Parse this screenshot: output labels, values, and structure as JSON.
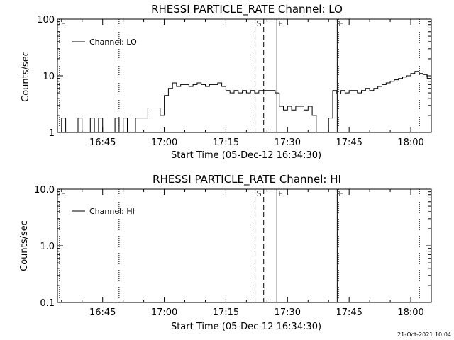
{
  "footer_timestamp": "21-Oct-2021 10:04",
  "chart_data": [
    {
      "type": "line",
      "title": "RHESSI PARTICLE_RATE Channel: LO",
      "xlabel": "Start Time (05-Dec-12 16:34:30)",
      "ylabel": "Counts/sec",
      "yscale": "log",
      "ylim": [
        1,
        100
      ],
      "xlim_minutes": [
        -0.5,
        90.5
      ],
      "x_ticks": [
        {
          "min": 10.5,
          "label": "16:45"
        },
        {
          "min": 25.5,
          "label": "17:00"
        },
        {
          "min": 40.5,
          "label": "17:15"
        },
        {
          "min": 55.5,
          "label": "17:30"
        },
        {
          "min": 70.5,
          "label": "17:45"
        },
        {
          "min": 85.5,
          "label": "18:00"
        }
      ],
      "y_ticks": [
        {
          "value": 1,
          "label": "1"
        },
        {
          "value": 10,
          "label": "10"
        },
        {
          "value": 100,
          "label": "100"
        }
      ],
      "legend": {
        "label": "Channel: LO",
        "position": "top-left"
      },
      "markers": [
        {
          "label": "E",
          "min": 0.0,
          "style": "dotted"
        },
        {
          "label": "",
          "min": 14.5,
          "style": "dotted"
        },
        {
          "label": "S",
          "min": 47.6,
          "style": "dashed"
        },
        {
          "label": "",
          "min": 49.7,
          "style": "dashed"
        },
        {
          "label": "F",
          "min": 52.9,
          "style": "solid"
        },
        {
          "label": "E",
          "min": 67.6,
          "style": "solid"
        },
        {
          "label": "",
          "min": 67.9,
          "style": "dotted"
        },
        {
          "label": "",
          "min": 87.6,
          "style": "dotted"
        }
      ],
      "series": [
        {
          "name": "Channel: LO",
          "x": [
            0,
            1,
            2,
            3,
            4,
            5,
            6,
            7,
            8,
            9,
            10,
            11,
            12,
            13,
            14,
            15,
            16,
            17,
            18,
            19,
            20,
            21,
            22,
            23,
            24,
            25,
            26,
            27,
            28,
            29,
            30,
            31,
            32,
            33,
            34,
            35,
            36,
            37,
            38,
            39,
            40,
            41,
            42,
            43,
            44,
            45,
            46,
            47,
            48,
            49,
            50,
            51,
            52,
            53,
            54,
            55,
            56,
            57,
            58,
            59,
            60,
            61,
            62,
            63,
            64,
            65,
            66,
            67,
            68,
            69,
            70,
            71,
            72,
            73,
            74,
            75,
            76,
            77,
            78,
            79,
            80,
            81,
            82,
            83,
            84,
            85,
            86,
            87,
            88,
            89,
            90
          ],
          "y": [
            1,
            1.8,
            1,
            1,
            1,
            1.8,
            1,
            1,
            1.8,
            1,
            1.8,
            1,
            1,
            1,
            1.8,
            1,
            1.8,
            1,
            1,
            1.8,
            1.8,
            1.8,
            2.7,
            2.7,
            2.7,
            2.0,
            4.5,
            6.0,
            7.5,
            6.5,
            7.0,
            7.0,
            6.5,
            7.0,
            7.5,
            7.0,
            6.5,
            7.0,
            7.0,
            7.5,
            6.5,
            5.5,
            5.0,
            5.5,
            5.0,
            5.5,
            5.0,
            5.5,
            5.0,
            5.5,
            5.5,
            5.5,
            5.5,
            5.0,
            2.9,
            2.5,
            2.9,
            2.5,
            2.9,
            2.9,
            2.5,
            2.9,
            2.0,
            1,
            1,
            1,
            1.8,
            5.5,
            4.8,
            5.5,
            5.0,
            5.5,
            5.5,
            5.0,
            5.5,
            6.0,
            5.5,
            6.0,
            6.5,
            7.0,
            7.5,
            8.0,
            8.5,
            9.0,
            9.5,
            10.0,
            11.0,
            12.0,
            11.0,
            10.5,
            9.0
          ]
        }
      ]
    },
    {
      "type": "line",
      "title": "RHESSI PARTICLE_RATE Channel: HI",
      "xlabel": "Start Time (05-Dec-12 16:34:30)",
      "ylabel": "Counts/sec",
      "yscale": "log",
      "ylim": [
        0.1,
        10.0
      ],
      "xlim_minutes": [
        -0.5,
        90.5
      ],
      "x_ticks": [
        {
          "min": 10.5,
          "label": "16:45"
        },
        {
          "min": 25.5,
          "label": "17:00"
        },
        {
          "min": 40.5,
          "label": "17:15"
        },
        {
          "min": 55.5,
          "label": "17:30"
        },
        {
          "min": 70.5,
          "label": "17:45"
        },
        {
          "min": 85.5,
          "label": "18:00"
        }
      ],
      "y_ticks": [
        {
          "value": 0.1,
          "label": "0.1"
        },
        {
          "value": 1.0,
          "label": "1.0"
        },
        {
          "value": 10.0,
          "label": "10.0"
        }
      ],
      "legend": {
        "label": "Channel: HI",
        "position": "top-left"
      },
      "markers": [
        {
          "label": "E",
          "min": 0.0,
          "style": "dotted"
        },
        {
          "label": "",
          "min": 14.5,
          "style": "dotted"
        },
        {
          "label": "S",
          "min": 47.6,
          "style": "dashed"
        },
        {
          "label": "",
          "min": 49.7,
          "style": "dashed"
        },
        {
          "label": "F",
          "min": 52.9,
          "style": "solid"
        },
        {
          "label": "E",
          "min": 67.6,
          "style": "solid"
        },
        {
          "label": "",
          "min": 67.9,
          "style": "dotted"
        },
        {
          "label": "",
          "min": 87.6,
          "style": "dotted"
        }
      ],
      "series": [
        {
          "name": "Channel: HI",
          "x": [],
          "y": []
        }
      ]
    }
  ]
}
